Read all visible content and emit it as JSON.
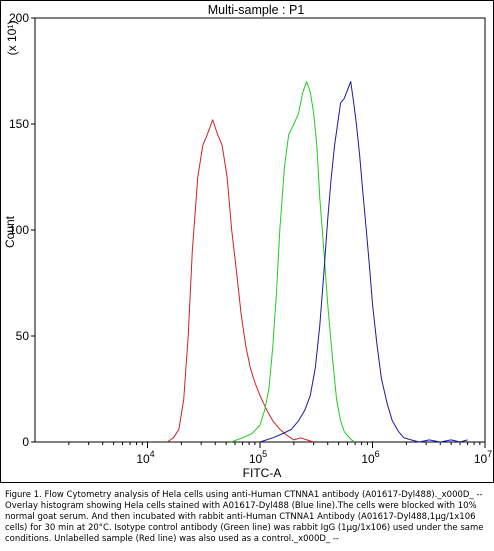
{
  "chart_data": {
    "type": "line",
    "title": "Multi-sample : P1",
    "xlabel": "FITC-A",
    "ylabel": "Count",
    "y_multiplier": "(x 10¹)",
    "x_scale": "log",
    "xlim": [
      1000,
      10000000
    ],
    "ylim": [
      0,
      200
    ],
    "x_ticks": [
      {
        "value": 10000,
        "base": "10",
        "exp": "4"
      },
      {
        "value": 100000,
        "base": "10",
        "exp": "5"
      },
      {
        "value": 1000000,
        "base": "10",
        "exp": "6"
      },
      {
        "value": 10000000,
        "base": "10",
        "exp": "7"
      }
    ],
    "y_ticks": [
      "0",
      "50",
      "100",
      "150",
      "200"
    ],
    "y_tick_values": [
      0,
      50,
      100,
      150,
      200
    ],
    "grid": false,
    "series": [
      {
        "color": "#d42020",
        "x": [
          15000,
          17000,
          19000,
          21000,
          23000,
          25000,
          28000,
          31000,
          34000,
          38000,
          42000,
          46000,
          51000,
          56000,
          62000,
          68000,
          75000,
          82000,
          90000,
          100000,
          115000,
          130000,
          150000,
          175000,
          200000,
          230000,
          260000,
          300000
        ],
        "y": [
          0,
          2,
          6,
          20,
          50,
          90,
          125,
          140,
          145,
          152,
          145,
          140,
          125,
          100,
          80,
          60,
          45,
          35,
          28,
          22,
          15,
          10,
          6,
          3,
          1,
          2,
          1,
          0
        ]
      },
      {
        "color": "#22cc22",
        "x": [
          55000,
          70000,
          85000,
          100000,
          110000,
          120000,
          130000,
          140000,
          150000,
          165000,
          180000,
          200000,
          220000,
          240000,
          260000,
          280000,
          300000,
          320000,
          340000,
          370000,
          400000,
          440000,
          480000,
          520000,
          560000,
          600000,
          650000,
          700000
        ],
        "y": [
          0,
          2,
          4,
          8,
          15,
          25,
          45,
          70,
          100,
          130,
          145,
          150,
          155,
          165,
          170,
          165,
          155,
          140,
          115,
          90,
          65,
          40,
          20,
          10,
          5,
          3,
          1,
          0
        ]
      },
      {
        "color": "#1a1aa0",
        "x": [
          100000,
          130000,
          160000,
          190000,
          220000,
          250000,
          280000,
          310000,
          340000,
          370000,
          400000,
          430000,
          460000,
          490000,
          520000,
          560000,
          600000,
          640000,
          680000,
          720000,
          770000,
          820000,
          880000,
          950000,
          1000000,
          1100000,
          1200000,
          1350000,
          1500000,
          1700000,
          1900000,
          2200000,
          2600000,
          3200000,
          4000000,
          5000000,
          6000000,
          7000000
        ],
        "y": [
          0,
          2,
          4,
          6,
          10,
          15,
          22,
          35,
          55,
          80,
          105,
          125,
          140,
          150,
          160,
          162,
          166,
          170,
          160,
          150,
          135,
          118,
          100,
          80,
          65,
          45,
          30,
          18,
          10,
          5,
          2,
          1,
          0,
          1,
          0,
          1,
          0,
          1
        ]
      }
    ]
  },
  "caption": "Figure 1. Flow Cytometry analysis of Hela cells using anti-Human CTNNA1 antibody (A01617-Dyl488)._x000D_ -- Overlay histogram showing Hela cells stained with A01617-Dyl488 (Blue line).The cells were blocked with 10% normal goat serum. And then incubated with rabbit anti-Human CTNNA1 Antibody (A01617-Dyl488,1μg/1x106 cells) for 30 min at 20°C. Isotype control antibody (Green line) was rabbit IgG (1μg/1x106) used under the same conditions. Unlabelled sample (Red line) was also used as a control._x000D_ --"
}
